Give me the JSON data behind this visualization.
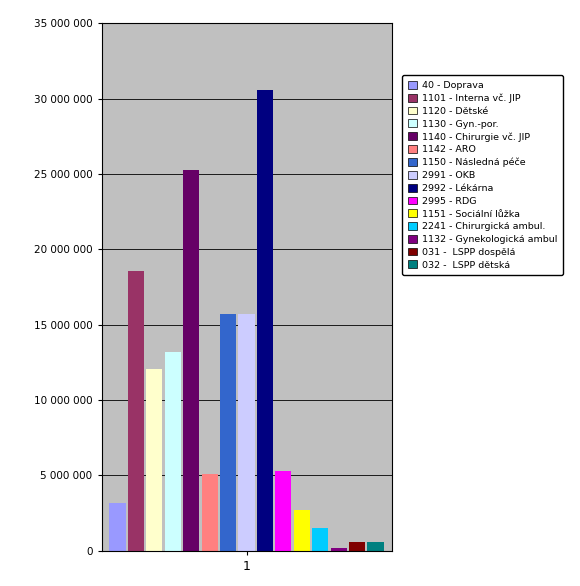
{
  "series": [
    {
      "label": "40 - Doprava",
      "value": 3200000,
      "color": "#9999FF"
    },
    {
      "label": "1101 - Interna vč. JIP",
      "value": 18600000,
      "color": "#993366"
    },
    {
      "label": "1120 - Dětské",
      "value": 12100000,
      "color": "#FFFFCC"
    },
    {
      "label": "1130 - Gyn.-por.",
      "value": 13200000,
      "color": "#CCFFFF"
    },
    {
      "label": "1140 - Chirurgie vč. JIP",
      "value": 25300000,
      "color": "#660066"
    },
    {
      "label": "1142 - ARO",
      "value": 5100000,
      "color": "#FF8080"
    },
    {
      "label": "1150 - Následná péče",
      "value": 15700000,
      "color": "#3366CC"
    },
    {
      "label": "2991 - OKB",
      "value": 15700000,
      "color": "#CCCCFF"
    },
    {
      "label": "2992 - Lékárna",
      "value": 30600000,
      "color": "#000080"
    },
    {
      "label": "2995 - RDG",
      "value": 5300000,
      "color": "#FF00FF"
    },
    {
      "label": "1151 - Sociální lůžka",
      "value": 2700000,
      "color": "#FFFF00"
    },
    {
      "label": "2241 - Chirurgická ambul.",
      "value": 1500000,
      "color": "#00CCFF"
    },
    {
      "label": "1132 - Gynekologická ambul",
      "value": 200000,
      "color": "#800080"
    },
    {
      "label": "031 -  LSPP dospělá",
      "value": 600000,
      "color": "#800000"
    },
    {
      "label": "032 -  LSPP dětská",
      "value": 600000,
      "color": "#008080"
    }
  ],
  "ylim": [
    0,
    35000000
  ],
  "yticks": [
    0,
    5000000,
    10000000,
    15000000,
    20000000,
    25000000,
    30000000,
    35000000
  ],
  "ytick_labels": [
    "0",
    "5 000 000",
    "10 000 000",
    "15 000 000",
    "20 000 000",
    "25 000 000",
    "30 000 000",
    "35 000 000"
  ],
  "xlabel": "1",
  "plot_bg_color": "#C0C0C0",
  "figure_bg": "#FFFFFF",
  "grid_color": "#000000"
}
